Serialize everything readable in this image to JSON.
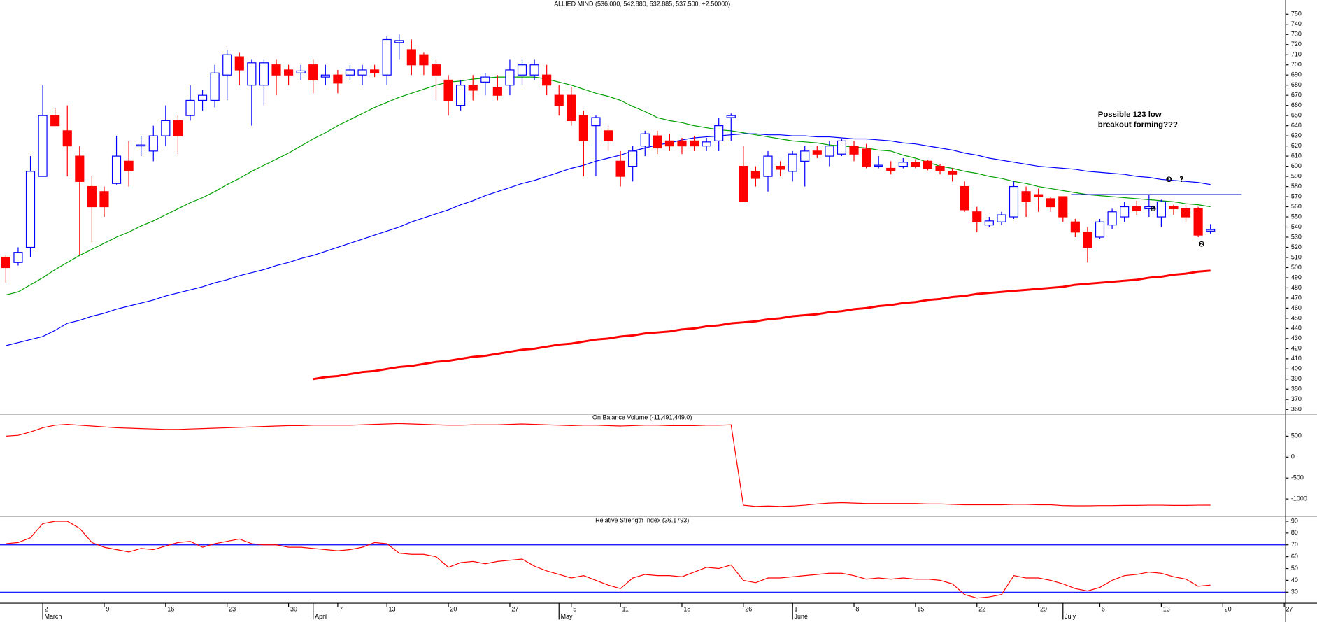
{
  "chart_data": [
    {
      "type": "candlestick",
      "title": "ALLIED MIND (536.000, 542.880, 532.885, 537.500, +2.50000)",
      "categories": [
        null,
        null,
        null,
        "2",
        null,
        null,
        null,
        null,
        "9",
        null,
        null,
        null,
        null,
        "16",
        null,
        null,
        null,
        null,
        "23",
        null,
        null,
        null,
        null,
        "30",
        null,
        null,
        null,
        "7",
        null,
        null,
        null,
        "13",
        null,
        null,
        null,
        null,
        "20",
        null,
        null,
        null,
        null,
        "27",
        null,
        null,
        null,
        null,
        "5",
        null,
        null,
        null,
        "11",
        null,
        null,
        null,
        null,
        "18",
        null,
        null,
        null,
        null,
        "26",
        null,
        null,
        null,
        "1",
        null,
        null,
        null,
        null,
        "8",
        null,
        null,
        null,
        null,
        "15",
        null,
        null,
        null,
        null,
        "22",
        null,
        null,
        null,
        null,
        "29",
        null,
        null,
        null,
        null,
        "6",
        null,
        null,
        null,
        null,
        "13",
        null,
        null,
        null,
        null,
        "20",
        null,
        null,
        null,
        null,
        "27"
      ],
      "month_labels": [
        null,
        null,
        null,
        "March",
        null,
        null,
        null,
        null,
        null,
        null,
        null,
        null,
        null,
        null,
        null,
        null,
        null,
        null,
        null,
        null,
        null,
        null,
        null,
        null,
        null,
        "April",
        null,
        null,
        null,
        null,
        null,
        null,
        null,
        null,
        null,
        null,
        null,
        null,
        null,
        null,
        null,
        null,
        null,
        null,
        null,
        "May",
        null,
        null,
        null,
        null,
        null,
        null,
        null,
        null,
        null,
        null,
        null,
        null,
        null,
        null,
        null,
        null,
        null,
        null,
        "June",
        null,
        null,
        null,
        null,
        null,
        null,
        null,
        null,
        null,
        null,
        null,
        null,
        null,
        null,
        null,
        null,
        null,
        null,
        null,
        null,
        null,
        "July",
        null,
        null,
        null,
        null,
        null,
        null,
        null,
        null,
        null,
        null,
        null,
        null,
        null,
        null,
        null,
        null,
        null,
        null
      ],
      "open": [
        510,
        505,
        520,
        590,
        650,
        635,
        610,
        580,
        575,
        583,
        605,
        620,
        615,
        630,
        645,
        650,
        665,
        665,
        690,
        708,
        680,
        680,
        700,
        695,
        692,
        700,
        688,
        690,
        690,
        690,
        695,
        690,
        722,
        715,
        710,
        700,
        685,
        660,
        680,
        683,
        678,
        680,
        690,
        690,
        690,
        670,
        670,
        650,
        640,
        635,
        605,
        600,
        620,
        630,
        625,
        625,
        625,
        620,
        625,
        648,
        600,
        595,
        590,
        600,
        595,
        605,
        615,
        610,
        612,
        620,
        617,
        600,
        598,
        600,
        604,
        605,
        600,
        595,
        580,
        555,
        542,
        545,
        550,
        575,
        572,
        568,
        570,
        545,
        535,
        530,
        542,
        550,
        560,
        558,
        550,
        560,
        558,
        558,
        536,
        null,
        null,
        null,
        null,
        null,
        null
      ],
      "high": [
        512,
        520,
        610,
        680,
        657,
        660,
        620,
        590,
        580,
        630,
        625,
        630,
        640,
        660,
        650,
        680,
        675,
        700,
        715,
        712,
        705,
        705,
        705,
        700,
        700,
        705,
        700,
        695,
        700,
        700,
        700,
        728,
        730,
        725,
        712,
        705,
        690,
        685,
        690,
        692,
        690,
        705,
        705,
        705,
        700,
        680,
        678,
        655,
        650,
        640,
        615,
        620,
        635,
        635,
        632,
        628,
        630,
        628,
        648,
        652,
        620,
        600,
        615,
        605,
        615,
        620,
        620,
        625,
        627,
        625,
        622,
        610,
        605,
        608,
        607,
        606,
        602,
        598,
        585,
        560,
        550,
        555,
        585,
        580,
        578,
        570,
        570,
        548,
        540,
        548,
        558,
        565,
        566,
        572,
        567,
        562,
        562,
        560,
        542.88,
        null,
        null,
        null,
        null,
        null,
        null
      ],
      "low": [
        485,
        502,
        510,
        590,
        640,
        590,
        512,
        525,
        550,
        582,
        580,
        610,
        605,
        620,
        612,
        645,
        655,
        658,
        665,
        680,
        640,
        660,
        670,
        680,
        685,
        672,
        680,
        672,
        685,
        680,
        688,
        680,
        705,
        690,
        690,
        665,
        650,
        655,
        665,
        670,
        665,
        670,
        680,
        685,
        670,
        650,
        640,
        590,
        590,
        615,
        580,
        585,
        610,
        612,
        615,
        612,
        615,
        615,
        615,
        625,
        565,
        580,
        575,
        590,
        585,
        580,
        608,
        600,
        610,
        605,
        598,
        598,
        592,
        598,
        598,
        596,
        592,
        585,
        555,
        535,
        540,
        542,
        548,
        550,
        555,
        555,
        545,
        530,
        505,
        528,
        538,
        545,
        552,
        550,
        540,
        552,
        545,
        530,
        532.885,
        null,
        null,
        null,
        null,
        null,
        null
      ],
      "close": [
        500,
        515,
        595,
        650,
        640,
        620,
        585,
        560,
        560,
        610,
        596,
        621,
        630,
        645,
        630,
        665,
        670,
        692,
        710,
        695,
        702,
        702,
        690,
        690,
        694,
        685,
        690,
        682,
        695,
        695,
        692,
        725,
        724,
        700,
        700,
        690,
        665,
        680,
        675,
        688,
        670,
        695,
        700,
        700,
        680,
        660,
        645,
        625,
        648,
        625,
        590,
        615,
        632,
        618,
        620,
        620,
        620,
        624,
        640,
        650,
        565,
        588,
        610,
        597,
        612,
        615,
        612,
        620,
        625,
        612,
        600,
        601,
        596,
        604,
        600,
        598,
        596,
        592,
        557,
        545,
        546,
        552,
        580,
        565,
        570,
        560,
        550,
        535,
        520,
        545,
        555,
        560,
        556,
        560,
        565,
        558,
        550,
        532,
        537.5,
        null,
        null,
        null,
        null,
        null,
        null
      ],
      "up_color": "#0000ff",
      "down_color": "#ff0000",
      "series": [
        {
          "color": "#00a000",
          "width": 1,
          "values": [
            473,
            476,
            483,
            490,
            498,
            505,
            512,
            518,
            524,
            530,
            535,
            541,
            546,
            552,
            558,
            564,
            569,
            575,
            582,
            588,
            595,
            601,
            607,
            613,
            620,
            627,
            633,
            640,
            646,
            652,
            658,
            663,
            668,
            672,
            676,
            680,
            683,
            684,
            686,
            687,
            688,
            688,
            688,
            688,
            686,
            683,
            680,
            676,
            672,
            669,
            665,
            659,
            654,
            648,
            645,
            643,
            640,
            638,
            636,
            635,
            633,
            631,
            629,
            627,
            625,
            624,
            623,
            621,
            620,
            619,
            618,
            616,
            615,
            611,
            608,
            604,
            600,
            598,
            595,
            593,
            590,
            588,
            585,
            583,
            580,
            578,
            576,
            574,
            572,
            571,
            570,
            569,
            568,
            567,
            566,
            565,
            563,
            562,
            560,
            null,
            null,
            null,
            null,
            null,
            null
          ]
        },
        {
          "color": "#0000ff",
          "width": 1,
          "values": [
            423,
            426,
            429,
            432,
            438,
            445,
            448,
            452,
            455,
            459,
            462,
            465,
            468,
            472,
            475,
            478,
            481,
            485,
            488,
            492,
            495,
            498,
            502,
            505,
            509,
            512,
            516,
            520,
            524,
            528,
            532,
            536,
            540,
            545,
            549,
            553,
            557,
            562,
            566,
            571,
            575,
            579,
            583,
            586,
            590,
            594,
            598,
            601,
            605,
            608,
            611,
            615,
            618,
            621,
            623,
            626,
            628,
            629,
            630,
            631,
            632,
            632,
            631,
            631,
            630,
            630,
            629,
            629,
            628,
            627,
            627,
            626,
            625,
            623,
            622,
            620,
            618,
            616,
            613,
            611,
            608,
            606,
            604,
            602,
            600,
            599,
            598,
            597,
            595,
            594,
            593,
            592,
            590,
            589,
            587,
            586,
            585,
            584,
            582,
            null,
            null,
            null,
            null,
            null,
            null
          ]
        },
        {
          "color": "#ff0000",
          "width": 2.5,
          "values": [
            null,
            null,
            null,
            null,
            null,
            null,
            null,
            null,
            null,
            null,
            null,
            null,
            null,
            null,
            null,
            null,
            null,
            null,
            null,
            null,
            null,
            null,
            null,
            null,
            null,
            390,
            392,
            393,
            395,
            397,
            398,
            400,
            402,
            403,
            405,
            407,
            408,
            410,
            412,
            413,
            415,
            417,
            419,
            420,
            422,
            424,
            425,
            427,
            429,
            430,
            432,
            433,
            435,
            436,
            437,
            439,
            440,
            442,
            443,
            445,
            446,
            447,
            449,
            450,
            452,
            453,
            454,
            456,
            457,
            459,
            460,
            462,
            463,
            465,
            466,
            468,
            469,
            471,
            472,
            474,
            475,
            476,
            477,
            478,
            479,
            480,
            481,
            483,
            484,
            485,
            486,
            487,
            488,
            490,
            491,
            493,
            494,
            496,
            497,
            null,
            null,
            null,
            null,
            null,
            null
          ]
        }
      ],
      "ylim": [
        356,
        764
      ],
      "yticks": [
        360,
        370,
        380,
        390,
        400,
        410,
        420,
        430,
        440,
        450,
        460,
        470,
        480,
        490,
        500,
        510,
        520,
        530,
        540,
        550,
        560,
        570,
        580,
        590,
        600,
        610,
        620,
        630,
        640,
        650,
        660,
        670,
        680,
        690,
        700,
        710,
        720,
        730,
        740,
        750
      ],
      "annotation": [
        "Possible 123 low",
        "breakout forming???"
      ],
      "markers": [
        "❶",
        "❷",
        "❸",
        "?"
      ],
      "annotation_color": "#0000cc",
      "resistance": 572
    },
    {
      "type": "line",
      "title": "On Balance Volume (-11,491,449.0)",
      "color": "#ff0000",
      "values": [
        500,
        520,
        600,
        700,
        760,
        780,
        760,
        740,
        720,
        700,
        690,
        680,
        670,
        660,
        660,
        670,
        680,
        690,
        700,
        710,
        720,
        730,
        740,
        750,
        750,
        760,
        760,
        760,
        760,
        770,
        780,
        790,
        800,
        790,
        780,
        770,
        760,
        760,
        770,
        770,
        770,
        780,
        790,
        780,
        770,
        760,
        750,
        760,
        760,
        750,
        740,
        750,
        760,
        760,
        750,
        750,
        750,
        760,
        760,
        770,
        -1150,
        -1180,
        -1170,
        -1180,
        -1170,
        -1150,
        -1120,
        -1100,
        -1090,
        -1100,
        -1110,
        -1110,
        -1110,
        -1110,
        -1110,
        -1120,
        -1120,
        -1130,
        -1140,
        -1140,
        -1140,
        -1140,
        -1130,
        -1130,
        -1140,
        -1140,
        -1160,
        -1165,
        -1165,
        -1160,
        -1160,
        -1155,
        -1155,
        -1150,
        -1150,
        -1155,
        -1155,
        -1150,
        -1149,
        null,
        null,
        null,
        null,
        null,
        null
      ],
      "ylim": [
        -1400,
        1000
      ],
      "yticks": [
        500,
        0,
        -500,
        -1000
      ]
    },
    {
      "type": "line",
      "title": "Relative Strength Index (36.1793)",
      "color": "#ff0000",
      "values": [
        71,
        72,
        76,
        88,
        90,
        90,
        84,
        72,
        68,
        66,
        64,
        67,
        66,
        69,
        72,
        73,
        68,
        71,
        73,
        75,
        71,
        70,
        70,
        68,
        68,
        67,
        66,
        65,
        66,
        68,
        72,
        71,
        63,
        62,
        62,
        60,
        51,
        55,
        56,
        54,
        56,
        57,
        58,
        52,
        48,
        45,
        42,
        44,
        40,
        36,
        33,
        42,
        45,
        44,
        44,
        43,
        47,
        51,
        50,
        53,
        40,
        38,
        42,
        42,
        43,
        44,
        45,
        46,
        46,
        44,
        41,
        42,
        41,
        42,
        41,
        41,
        40,
        37,
        28,
        25,
        26,
        28,
        44,
        42,
        42,
        40,
        37,
        33,
        31,
        34,
        40,
        44,
        45,
        47,
        46,
        43,
        41,
        35,
        36,
        null,
        null,
        null,
        null,
        null,
        null
      ],
      "ylim": [
        21,
        94
      ],
      "yticks": [
        30,
        40,
        50,
        60,
        70,
        80,
        90
      ],
      "hlines": [
        70,
        30
      ],
      "hline_color": "#0000ff"
    }
  ]
}
